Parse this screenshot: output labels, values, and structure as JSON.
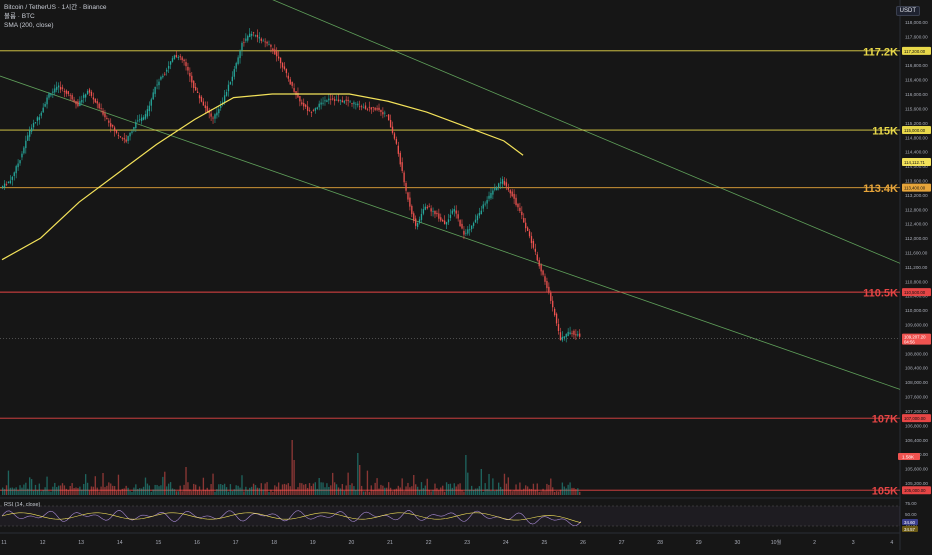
{
  "header": {
    "title": "Bitcoin / TetherUS · 1시간 · Binance",
    "line2": "볼륨 · BTC",
    "line3": "SMA (200, close)"
  },
  "quote_currency": "USDT",
  "rsi_label": "RSI (14, close)",
  "colors": {
    "background": "#161616",
    "up": "#26a69a",
    "down": "#ef5350",
    "sma": "#f3e25a",
    "yellow_level": "#e8d84a",
    "orange_level": "#e7a53a",
    "red_level": "#e64545",
    "trend": "#5f9f5a",
    "rsi": "#a98bd6"
  },
  "chart_data": {
    "type": "candlestick",
    "symbol": "BTCUSDT",
    "interval": "1h",
    "x_ticks": [
      "11",
      "12",
      "13",
      "14",
      "15",
      "16",
      "17",
      "18",
      "19",
      "20",
      "21",
      "22",
      "23",
      "24",
      "25",
      "26",
      "27",
      "28",
      "29",
      "30",
      "10월",
      "2",
      "3",
      "4"
    ],
    "y_ticks": [
      "118,000.00",
      "117,600.00",
      "117,200.00",
      "116,800.00",
      "116,400.00",
      "116,000.00",
      "115,600.00",
      "115,200.00",
      "114,800.00",
      "114,400.00",
      "114,000.00",
      "113,600.00",
      "113,200.00",
      "112,800.00",
      "112,400.00",
      "112,000.00",
      "111,600.00",
      "111,200.00",
      "110,800.00",
      "110,400.00",
      "110,000.00",
      "109,600.00",
      "109,200.00",
      "108,800.00",
      "108,400.00",
      "108,000.00",
      "107,600.00",
      "107,200.00",
      "106,800.00",
      "106,400.00",
      "106,000.00",
      "105,600.00",
      "105,200.00"
    ],
    "ylim": [
      104950,
      118500
    ],
    "price_path": [
      [
        0,
        113400
      ],
      [
        1,
        113600
      ],
      [
        2,
        114200
      ],
      [
        3,
        115000
      ],
      [
        4,
        115400
      ],
      [
        5,
        116000
      ],
      [
        6,
        116200
      ],
      [
        7,
        116000
      ],
      [
        8,
        115700
      ],
      [
        9,
        116100
      ],
      [
        10,
        115700
      ],
      [
        11,
        115300
      ],
      [
        12,
        114900
      ],
      [
        13,
        114700
      ],
      [
        14,
        115200
      ],
      [
        15,
        115400
      ],
      [
        16,
        116200
      ],
      [
        17,
        116600
      ],
      [
        18,
        117100
      ],
      [
        19,
        116900
      ],
      [
        20,
        116200
      ],
      [
        21,
        115700
      ],
      [
        22,
        115300
      ],
      [
        23,
        115800
      ],
      [
        24,
        116500
      ],
      [
        25,
        117400
      ],
      [
        26,
        117700
      ],
      [
        27,
        117500
      ],
      [
        28,
        117300
      ],
      [
        29,
        116900
      ],
      [
        30,
        116300
      ],
      [
        31,
        115800
      ],
      [
        32,
        115500
      ],
      [
        33,
        115700
      ],
      [
        34,
        115900
      ],
      [
        35,
        115800
      ],
      [
        36,
        115800
      ],
      [
        37,
        115700
      ],
      [
        38,
        115600
      ],
      [
        39,
        115600
      ],
      [
        40,
        115400
      ],
      [
        41,
        114600
      ],
      [
        42,
        113300
      ],
      [
        43,
        112300
      ],
      [
        44,
        112900
      ],
      [
        45,
        112700
      ],
      [
        46,
        112400
      ],
      [
        47,
        112800
      ],
      [
        48,
        112100
      ],
      [
        49,
        112400
      ],
      [
        50,
        112900
      ],
      [
        51,
        113300
      ],
      [
        52,
        113600
      ],
      [
        53,
        113200
      ],
      [
        54,
        112600
      ],
      [
        55,
        111900
      ],
      [
        56,
        111100
      ],
      [
        57,
        110300
      ],
      [
        58,
        109200
      ],
      [
        59,
        109400
      ],
      [
        60,
        109300
      ]
    ],
    "sma200": [
      [
        0,
        111400
      ],
      [
        4,
        112000
      ],
      [
        8,
        113000
      ],
      [
        12,
        113800
      ],
      [
        16,
        114600
      ],
      [
        20,
        115300
      ],
      [
        24,
        115900
      ],
      [
        28,
        116000
      ],
      [
        32,
        116000
      ],
      [
        36,
        116000
      ],
      [
        40,
        115800
      ],
      [
        44,
        115500
      ],
      [
        48,
        115100
      ],
      [
        52,
        114700
      ],
      [
        54,
        114300
      ]
    ],
    "levels": [
      {
        "price": 117200,
        "label": "117.2K",
        "axis_value": "117,200.00",
        "color": "#e8d84a"
      },
      {
        "price": 115000,
        "label": "115K",
        "axis_value": "115,000.00",
        "color": "#e8d84a"
      },
      {
        "price": 113400,
        "label": "113.4K",
        "axis_value": "113,400.00",
        "color": "#e7a53a"
      },
      {
        "price": 110500,
        "label": "110.5K",
        "axis_value": "110,500.00",
        "color": "#e64545"
      },
      {
        "price": 107000,
        "label": "107K",
        "axis_value": "107,000.00",
        "color": "#e64545"
      },
      {
        "price": 105000,
        "label": "105K",
        "axis_value": "105,000.00",
        "color": "#e64545"
      }
    ],
    "current_price": "109,207.20",
    "countdown": "04:56",
    "sma_value": "114,112.71",
    "volume_badge": "1.58K",
    "rsi_scale": [
      "75.00",
      "50.00",
      "25.00"
    ],
    "rsi_values": [
      "34.60",
      "34.57"
    ]
  }
}
